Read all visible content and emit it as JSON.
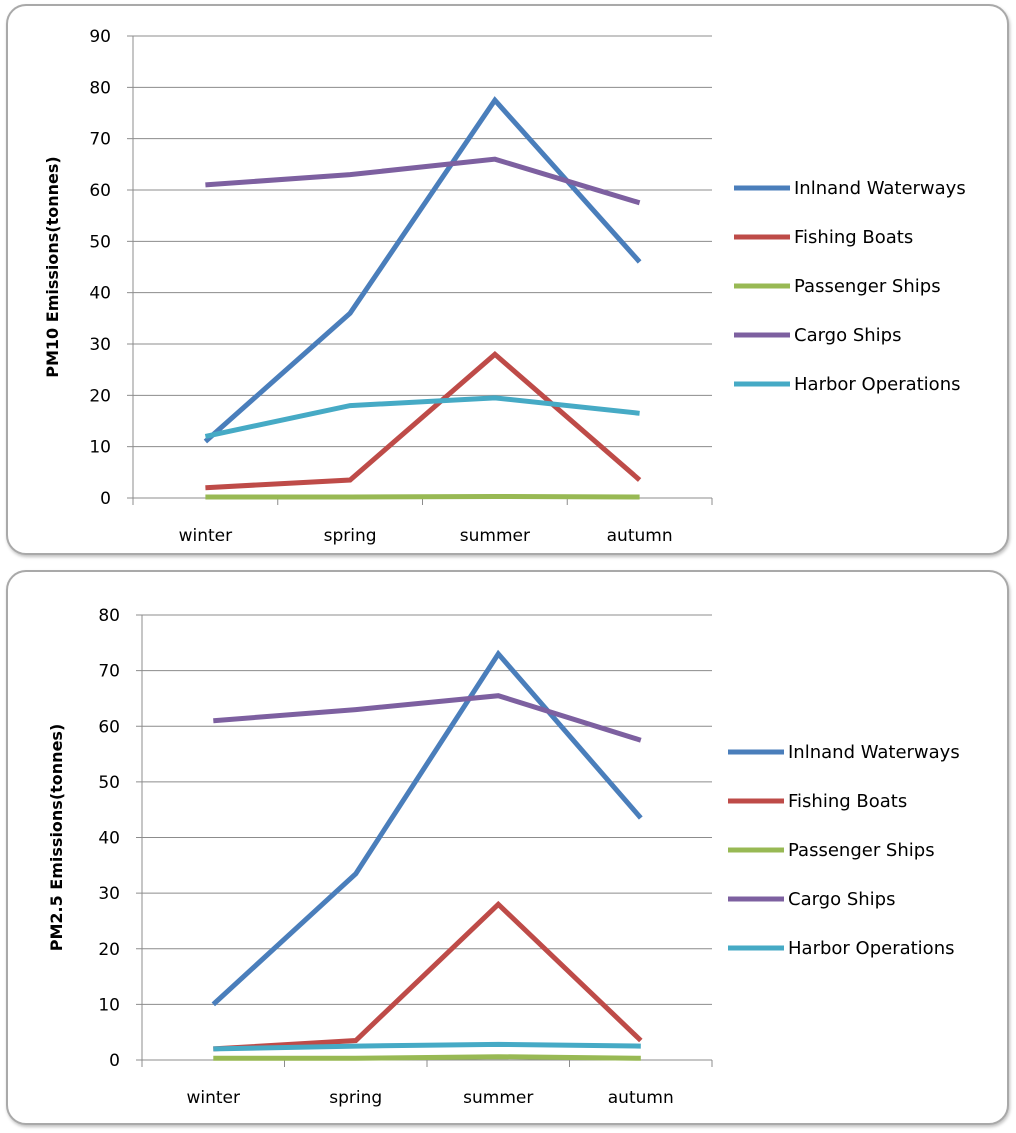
{
  "chart_data": [
    {
      "type": "line",
      "categories": [
        "winter",
        "spring",
        "summer",
        "autumn"
      ],
      "ylabel": "PM10 Emissions(tonnes)",
      "ylim": [
        0,
        90
      ],
      "yticks": [
        "0",
        "10",
        "20",
        "30",
        "40",
        "50",
        "60",
        "70",
        "80",
        "90"
      ],
      "grid": true,
      "legend_position": "right",
      "series": [
        {
          "name": "Inlnand Waterways",
          "color": "#4a7ebb",
          "values": [
            11,
            36,
            77.5,
            46
          ]
        },
        {
          "name": "Fishing Boats",
          "color": "#be4b48",
          "values": [
            2,
            3.5,
            28,
            3.5
          ]
        },
        {
          "name": "Passenger Ships",
          "color": "#98b954",
          "values": [
            0.2,
            0.2,
            0.3,
            0.2
          ]
        },
        {
          "name": "Cargo Ships",
          "color": "#7d60a0",
          "values": [
            61,
            63,
            66,
            57.5
          ]
        },
        {
          "name": "Harbor Operations",
          "color": "#46aac5",
          "values": [
            12,
            18,
            19.5,
            16.5
          ]
        }
      ]
    },
    {
      "type": "line",
      "categories": [
        "winter",
        "spring",
        "summer",
        "autumn"
      ],
      "ylabel": "PM2.5 Emissions(tonnes)",
      "ylim": [
        0,
        80
      ],
      "yticks": [
        "0",
        "10",
        "20",
        "30",
        "40",
        "50",
        "60",
        "70",
        "80"
      ],
      "grid": true,
      "legend_position": "right",
      "series": [
        {
          "name": "Inlnand Waterways",
          "color": "#4a7ebb",
          "values": [
            10,
            33.5,
            73,
            43.5
          ]
        },
        {
          "name": "Fishing Boats",
          "color": "#be4b48",
          "values": [
            2,
            3.5,
            28,
            3.5
          ]
        },
        {
          "name": "Passenger Ships",
          "color": "#98b954",
          "values": [
            0.3,
            0.3,
            0.6,
            0.3
          ]
        },
        {
          "name": "Cargo Ships",
          "color": "#7d60a0",
          "values": [
            61,
            63,
            65.5,
            57.5
          ]
        },
        {
          "name": "Harbor Operations",
          "color": "#46aac5",
          "values": [
            2,
            2.5,
            2.8,
            2.5
          ]
        }
      ]
    }
  ]
}
